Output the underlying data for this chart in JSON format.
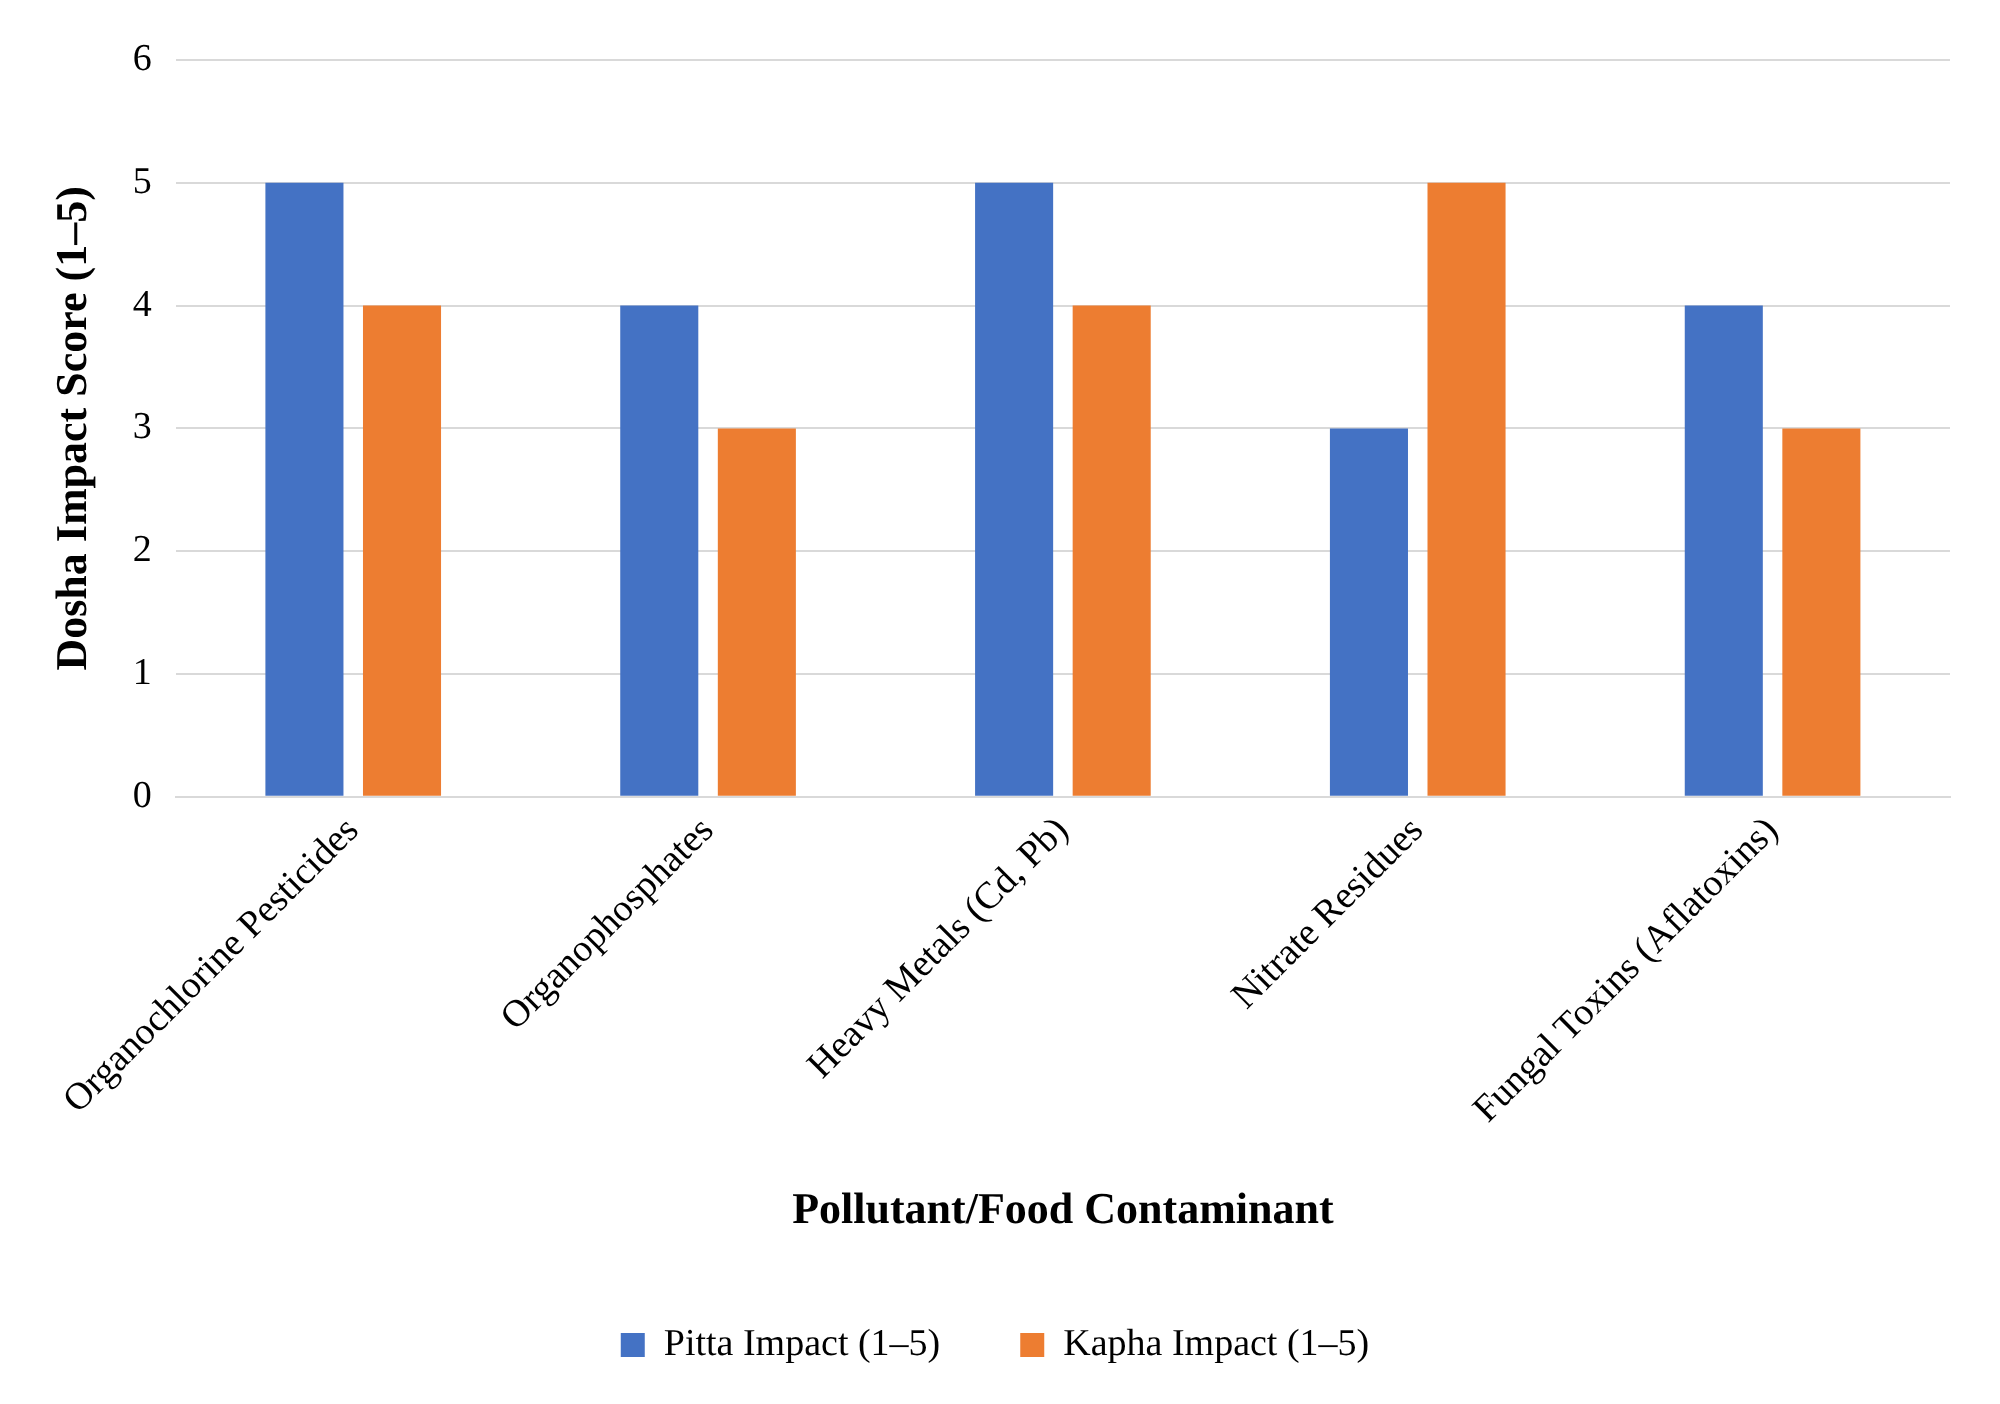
{
  "chart_data": {
    "type": "bar",
    "xlabel": "Pollutant/Food Contaminant",
    "ylabel": "Dosha Impact Score (1–5)",
    "categories": [
      "Organochlorine Pesticides",
      "Organophosphates",
      "Heavy Metals (Cd, Pb)",
      "Nitrate Residues",
      "Fungal Toxins (Aflatoxins)"
    ],
    "series": [
      {
        "name": "Pitta Impact (1–5)",
        "color": "#4472c4",
        "values": [
          5,
          4,
          5,
          3,
          4
        ]
      },
      {
        "name": "Kapha Impact (1–5)",
        "color": "#ed7d31",
        "values": [
          4,
          3,
          4,
          5,
          3
        ]
      }
    ],
    "ylim": [
      0,
      6
    ],
    "yticks": [
      0,
      1,
      2,
      3,
      4,
      5,
      6
    ],
    "grid": "y",
    "legend": "bottom"
  }
}
